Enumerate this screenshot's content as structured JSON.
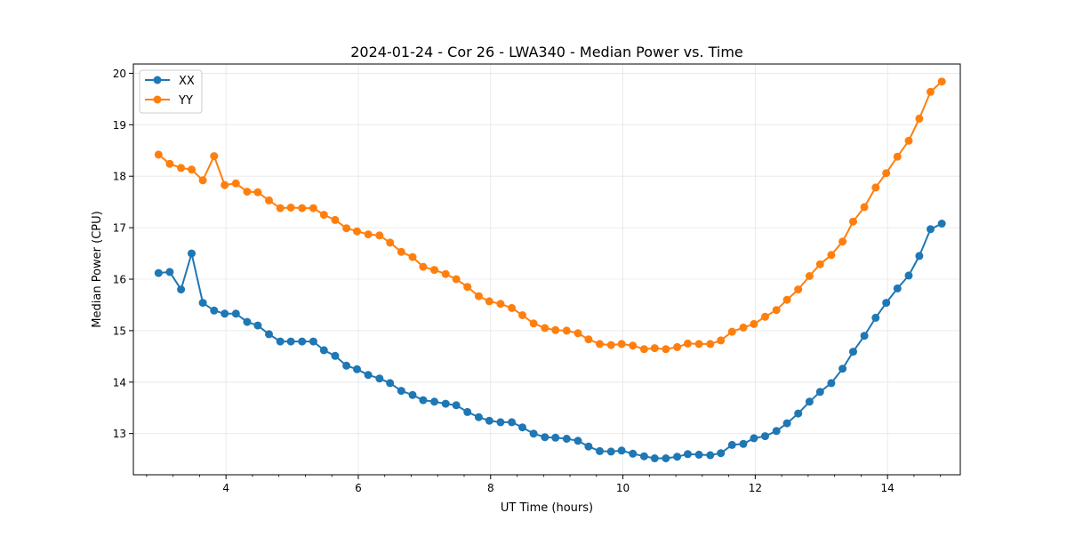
{
  "chart_data": {
    "type": "line",
    "title": "2024-01-24 - Cor 26 - LWA340 - Median Power vs. Time",
    "xlabel": "UT Time (hours)",
    "ylabel": "Median Power (CPU)",
    "xlim": [
      2.6,
      15.1
    ],
    "ylim": [
      12.2,
      20.18
    ],
    "xticks": [
      4,
      6,
      8,
      10,
      12,
      14
    ],
    "yticks": [
      13,
      14,
      15,
      16,
      17,
      18,
      19,
      20
    ],
    "grid": true,
    "legend": "top-left",
    "x": [
      2.98,
      3.15,
      3.32,
      3.48,
      3.65,
      3.82,
      3.98,
      4.15,
      4.32,
      4.48,
      4.65,
      4.82,
      4.98,
      5.15,
      5.32,
      5.48,
      5.65,
      5.82,
      5.98,
      6.15,
      6.32,
      6.48,
      6.65,
      6.82,
      6.98,
      7.15,
      7.32,
      7.48,
      7.65,
      7.82,
      7.98,
      8.15,
      8.32,
      8.48,
      8.65,
      8.82,
      8.98,
      9.15,
      9.32,
      9.48,
      9.65,
      9.82,
      9.98,
      10.15,
      10.32,
      10.48,
      10.65,
      10.82,
      10.98,
      11.15,
      11.32,
      11.48,
      11.65,
      11.82,
      11.98,
      12.15,
      12.32,
      12.48,
      12.65,
      12.82,
      12.98,
      13.15,
      13.32,
      13.48,
      13.65,
      13.82,
      13.98,
      14.15,
      14.32,
      14.48,
      14.65,
      14.82
    ],
    "series": [
      {
        "name": "XX",
        "color": "#1f77b4",
        "values": [
          16.12,
          16.14,
          15.8,
          16.5,
          15.54,
          15.39,
          15.33,
          15.33,
          15.17,
          15.1,
          14.93,
          14.79,
          14.79,
          14.79,
          14.79,
          14.62,
          14.51,
          14.32,
          14.25,
          14.14,
          14.07,
          13.98,
          13.83,
          13.75,
          13.65,
          13.62,
          13.58,
          13.55,
          13.42,
          13.32,
          13.25,
          13.22,
          13.22,
          13.12,
          13.0,
          12.93,
          12.92,
          12.9,
          12.86,
          12.75,
          12.66,
          12.65,
          12.67,
          12.61,
          12.56,
          12.52,
          12.52,
          12.55,
          12.6,
          12.59,
          12.58,
          12.62,
          12.78,
          12.8,
          12.91,
          12.95,
          13.05,
          13.2,
          13.39,
          13.62,
          13.81,
          13.98,
          14.26,
          14.59,
          14.9,
          15.25,
          15.54,
          15.82,
          16.07,
          16.45,
          16.97,
          17.08
        ]
      },
      {
        "name": "YY",
        "color": "#ff7f0e",
        "values": [
          18.42,
          18.24,
          18.16,
          18.13,
          17.92,
          18.39,
          17.83,
          17.86,
          17.7,
          17.69,
          17.53,
          17.38,
          17.39,
          17.38,
          17.38,
          17.25,
          17.15,
          16.99,
          16.93,
          16.87,
          16.85,
          16.71,
          16.53,
          16.43,
          16.24,
          16.18,
          16.1,
          16.0,
          15.85,
          15.67,
          15.57,
          15.52,
          15.44,
          15.3,
          15.14,
          15.05,
          15.01,
          15.0,
          14.95,
          14.83,
          14.74,
          14.72,
          14.74,
          14.71,
          14.64,
          14.66,
          14.64,
          14.68,
          14.75,
          14.74,
          14.74,
          14.81,
          14.98,
          15.06,
          15.13,
          15.27,
          15.4,
          15.6,
          15.8,
          16.06,
          16.29,
          16.47,
          16.73,
          17.12,
          17.4,
          17.78,
          18.06,
          18.38,
          18.69,
          19.12,
          19.64,
          19.84
        ]
      }
    ]
  }
}
